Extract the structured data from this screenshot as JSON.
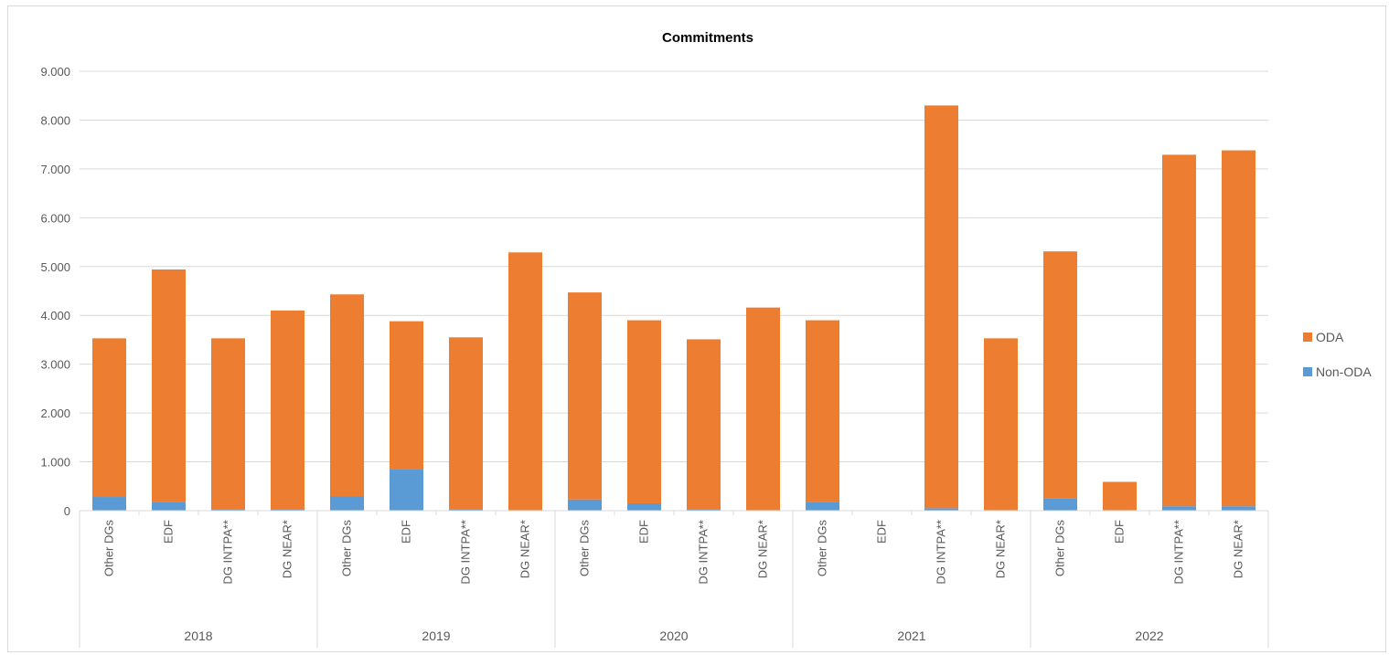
{
  "chart_data": {
    "type": "bar",
    "stacked": true,
    "title": "Commitments",
    "xlabel": "",
    "ylabel": "",
    "ylim": [
      0,
      9000
    ],
    "yticks": [
      "0",
      "1.000",
      "2.000",
      "3.000",
      "4.000",
      "5.000",
      "6.000",
      "7.000",
      "8.000",
      "9.000"
    ],
    "ytick_values": [
      0,
      1000,
      2000,
      3000,
      4000,
      5000,
      6000,
      7000,
      8000,
      9000
    ],
    "grid": true,
    "legend_position": "right",
    "groups": [
      {
        "label": "2018",
        "categories": [
          "Other DGs",
          "EDF",
          "DG INTPA**",
          "DG NEAR*"
        ]
      },
      {
        "label": "2019",
        "categories": [
          "Other DGs",
          "EDF",
          "DG INTPA**",
          "DG NEAR*"
        ]
      },
      {
        "label": "2020",
        "categories": [
          "Other DGs",
          "EDF",
          "DG INTPA**",
          "DG NEAR*"
        ]
      },
      {
        "label": "2021",
        "categories": [
          "Other DGs",
          "EDF",
          "DG INTPA**",
          "DG NEAR*"
        ]
      },
      {
        "label": "2022",
        "categories": [
          "Other DGs",
          "EDF",
          "DG INTPA**",
          "DG NEAR*"
        ]
      }
    ],
    "series": [
      {
        "name": "Non-ODA",
        "color": "#5b9bd5",
        "values": [
          280,
          170,
          30,
          30,
          290,
          850,
          30,
          10,
          230,
          150,
          30,
          10,
          170,
          0,
          50,
          10,
          250,
          10,
          90,
          90
        ]
      },
      {
        "name": "ODA",
        "color": "#ed7d31",
        "values": [
          3250,
          4770,
          3500,
          4070,
          4140,
          3030,
          3520,
          5280,
          4240,
          3750,
          3480,
          4150,
          3730,
          0,
          8250,
          3520,
          5060,
          580,
          7200,
          7290
        ]
      }
    ],
    "legend": [
      {
        "name": "ODA",
        "color": "#ed7d31"
      },
      {
        "name": "Non-ODA",
        "color": "#5b9bd5"
      }
    ]
  }
}
